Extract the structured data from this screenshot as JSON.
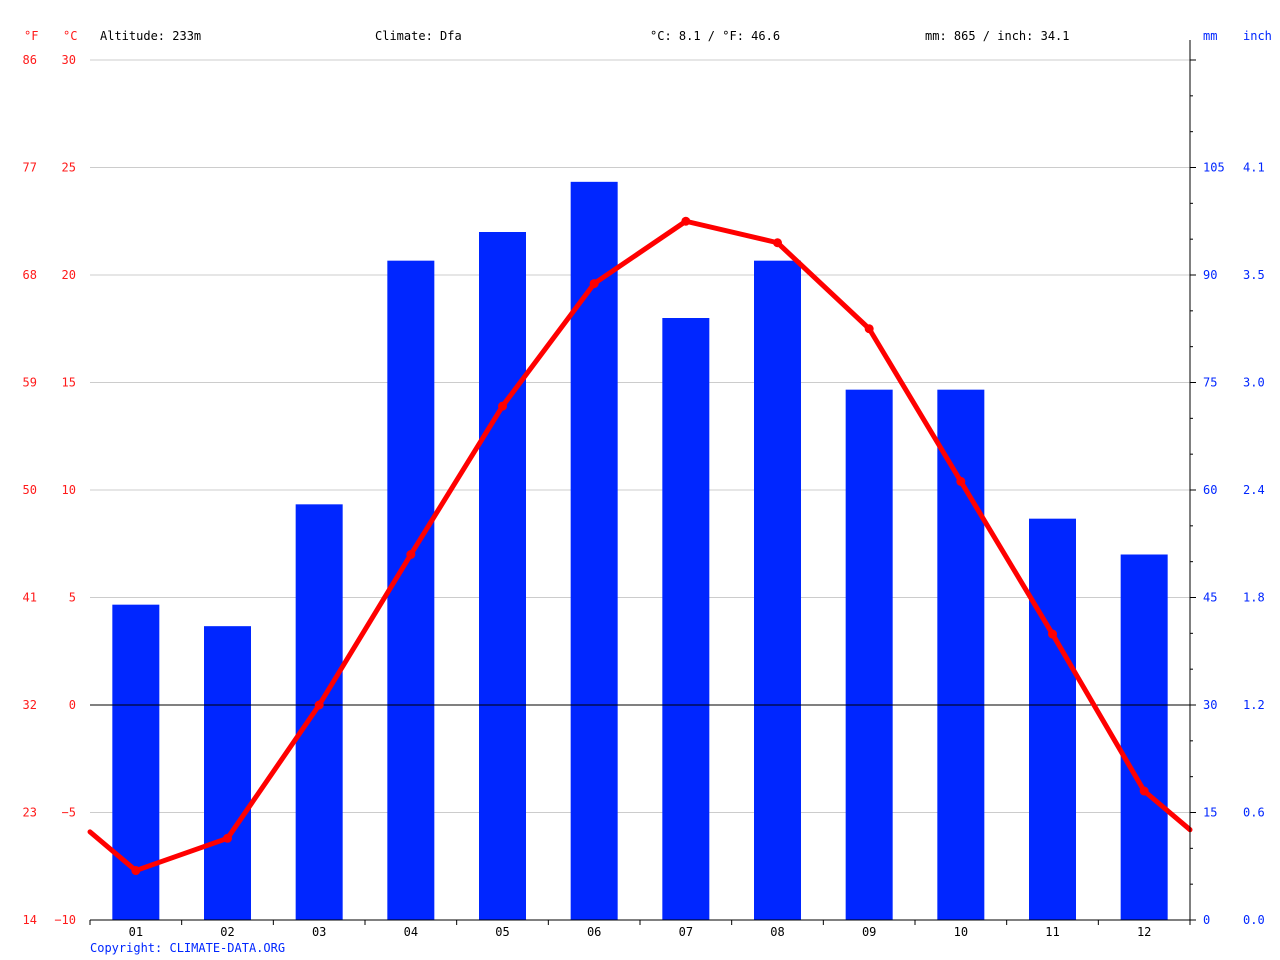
{
  "header": {
    "altitude": "Altitude: 233m",
    "climate": "Climate: Dfa",
    "avg_temp": "°C: 8.1 / °F: 46.6",
    "precip_total": "mm: 865 / inch: 34.1"
  },
  "axes": {
    "left_f_unit": "°F",
    "left_c_unit": "°C",
    "right_mm_unit": "mm",
    "right_inch_unit": "inch"
  },
  "copyright": "Copyright: CLIMATE-DATA.ORG",
  "colors": {
    "temperature": "#ff0000",
    "precipitation": "#0026ff",
    "grid": "#cccccc",
    "zero_line": "#000000"
  },
  "chart_data": {
    "type": "bar+line",
    "categories": [
      "01",
      "02",
      "03",
      "04",
      "05",
      "06",
      "07",
      "08",
      "09",
      "10",
      "11",
      "12"
    ],
    "series": [
      {
        "type": "bar",
        "axis": "right",
        "values": [
          44,
          41,
          58,
          92,
          96,
          103,
          84,
          92,
          74,
          74,
          56,
          51
        ]
      },
      {
        "type": "line",
        "axis": "left",
        "values": [
          -7.7,
          -6.2,
          0,
          7,
          13.9,
          19.6,
          22.5,
          21.5,
          17.5,
          10.4,
          3.3,
          -4
        ]
      }
    ],
    "line_edges": {
      "start": -5.9,
      "end": -5.8
    },
    "left_axis_c": {
      "ylim": [
        -10,
        30
      ],
      "ticks": [
        30,
        25,
        20,
        15,
        10,
        5,
        0,
        -5,
        -10
      ]
    },
    "left_axis_f": {
      "ticks": [
        86,
        77,
        68,
        59,
        50,
        41,
        32,
        23,
        14
      ]
    },
    "right_axis_mm": {
      "ylim": [
        0,
        120
      ],
      "ticks": [
        105,
        90,
        75,
        60,
        45,
        30,
        15,
        0
      ]
    },
    "right_axis_inch": {
      "ticks": [
        "4.1",
        "3.5",
        "3.0",
        "2.4",
        "1.8",
        "1.2",
        "0.6",
        "0.0"
      ]
    },
    "grid": true
  }
}
